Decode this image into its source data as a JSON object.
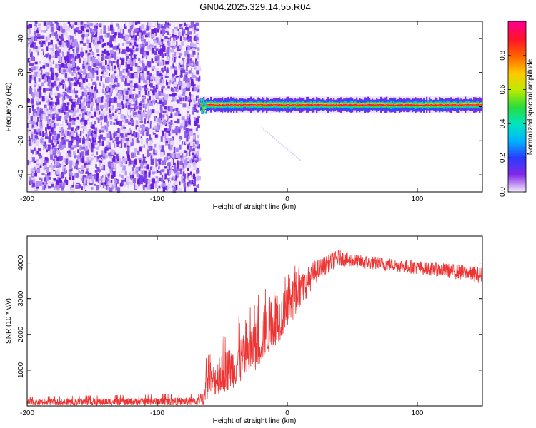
{
  "title": "GN04.2025.329.14.55.R04",
  "colors": {
    "snr_line": "#ee3333",
    "spec_dense": "#6a1ee0",
    "spec_light": "#d6c4f7"
  },
  "chart_data": [
    {
      "type": "heatmap",
      "name": "spectrogram",
      "xlabel": "Height of straight line (km)",
      "ylabel": "Frequency (Hz)",
      "xlim": [
        -200,
        150
      ],
      "ylim": [
        -50,
        50
      ],
      "xticks": [
        -200,
        -100,
        0,
        100
      ],
      "yticks": [
        -40,
        -20,
        0,
        20,
        40
      ],
      "noise_region_x": [
        -200,
        -67
      ],
      "signal_start_x": -67,
      "signal_center_freq": 1,
      "colorbar": {
        "label": "Normalized spectral amplitude",
        "range": [
          0,
          1
        ],
        "ticks": [
          "0.0",
          "0.2",
          "0.4",
          "0.6",
          "0.8"
        ]
      }
    },
    {
      "type": "line",
      "name": "snr",
      "xlabel": "Height of straight line (km)",
      "ylabel": "SNR (10 * v/v)",
      "xlim": [
        -200,
        150
      ],
      "ylim": [
        0,
        4750
      ],
      "xticks": [
        -200,
        -100,
        0,
        100
      ],
      "yticks": [
        1000,
        2000,
        3000,
        4000
      ],
      "envelope": {
        "x": [
          -200,
          -64,
          -63,
          -50,
          -30,
          -15,
          0,
          10,
          20,
          30,
          40,
          50,
          80,
          120,
          150
        ],
        "center": [
          100,
          120,
          550,
          900,
          1400,
          2100,
          2700,
          3200,
          3700,
          3950,
          4150,
          4050,
          3950,
          3800,
          3650
        ],
        "spread": [
          90,
          120,
          380,
          550,
          700,
          700,
          600,
          480,
          350,
          260,
          230,
          200,
          190,
          200,
          230
        ]
      }
    }
  ]
}
